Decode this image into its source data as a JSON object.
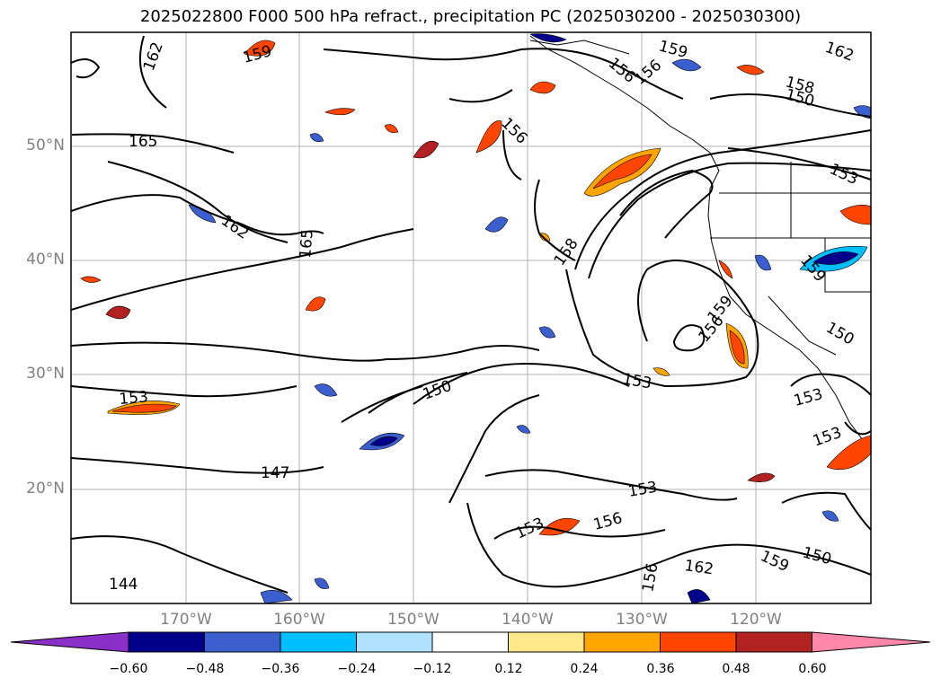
{
  "title": "2025022800 F000 500 hPa refract., precipitation PC (2025030200 - 2025030300)",
  "lat_labels": [
    "50°N",
    "40°N",
    "30°N",
    "20°N"
  ],
  "lon_labels": [
    "170°W",
    "160°W",
    "150°W",
    "140°W",
    "130°W",
    "120°W"
  ],
  "contour_labels": [
    "162",
    "159",
    "165",
    "162",
    "165",
    "153",
    "150",
    "147",
    "144",
    "156",
    "159",
    "156",
    "158",
    "153",
    "156",
    "159",
    "153",
    "150",
    "159",
    "153",
    "150",
    "156",
    "162",
    "153",
    "156",
    "156",
    "158",
    "153",
    "153",
    "162",
    "159",
    "150"
  ],
  "colorbar": {
    "ticks": [
      "−0.60",
      "−0.48",
      "−0.36",
      "−0.24",
      "−0.12",
      "0.12",
      "0.24",
      "0.36",
      "0.48",
      "0.60"
    ],
    "colors": [
      "#8b2fc9",
      "#00008b",
      "#3b5fce",
      "#00bfff",
      "#b0e2ff",
      "#ffffff",
      "#ffe98a",
      "#ffa500",
      "#ff4500",
      "#b22222",
      "#ff88aa"
    ]
  }
}
